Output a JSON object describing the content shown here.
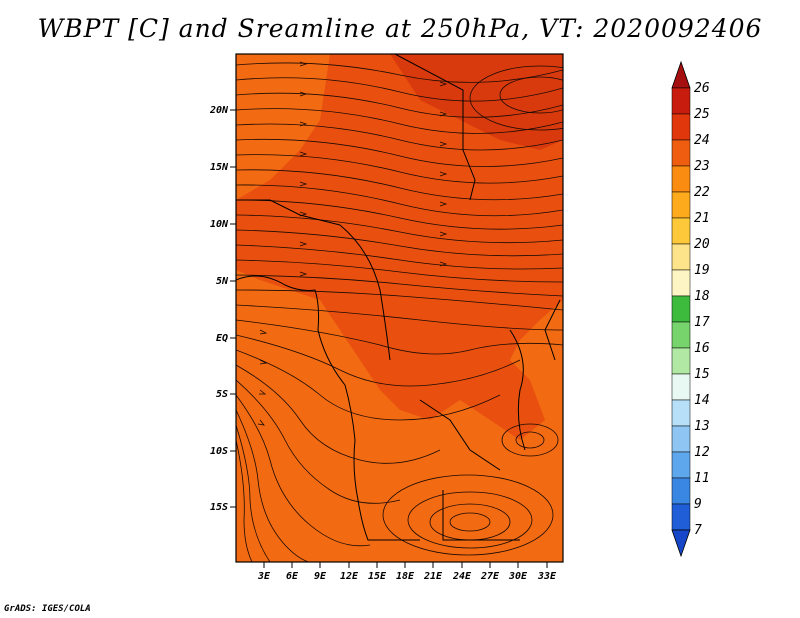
{
  "title": "WBPT [C] and Sreamline at 250hPa, VT: 2020092406",
  "credit": "GrADS: IGES/COLA",
  "map": {
    "lat_labels": [
      "20N",
      "15N",
      "10N",
      "5N",
      "EQ",
      "5S",
      "10S",
      "15S"
    ],
    "lon_labels": [
      "3E",
      "6E",
      "9E",
      "12E",
      "15E",
      "18E",
      "21E",
      "24E",
      "27E",
      "30E",
      "33E"
    ],
    "fill_colors": {
      "c22": "#f26a12",
      "c23": "#e9500f",
      "c24": "#d93a0d"
    }
  },
  "colorbar": {
    "labels": [
      "26",
      "25",
      "24",
      "23",
      "22",
      "21",
      "20",
      "19",
      "18",
      "17",
      "16",
      "15",
      "14",
      "13",
      "12",
      "11",
      "9",
      "7"
    ],
    "colors": [
      "#a50f0f",
      "#c81d0e",
      "#e0380c",
      "#ef5d10",
      "#fb8c12",
      "#fdaa1c",
      "#fdc93a",
      "#fde38a",
      "#fdf6c4",
      "#3dbb3d",
      "#77d36b",
      "#b1e8a4",
      "#e8f8f3",
      "#b7dff8",
      "#8ec5f3",
      "#5fa7ec",
      "#3a87e3",
      "#1f5ed6",
      "#1747c9"
    ]
  }
}
